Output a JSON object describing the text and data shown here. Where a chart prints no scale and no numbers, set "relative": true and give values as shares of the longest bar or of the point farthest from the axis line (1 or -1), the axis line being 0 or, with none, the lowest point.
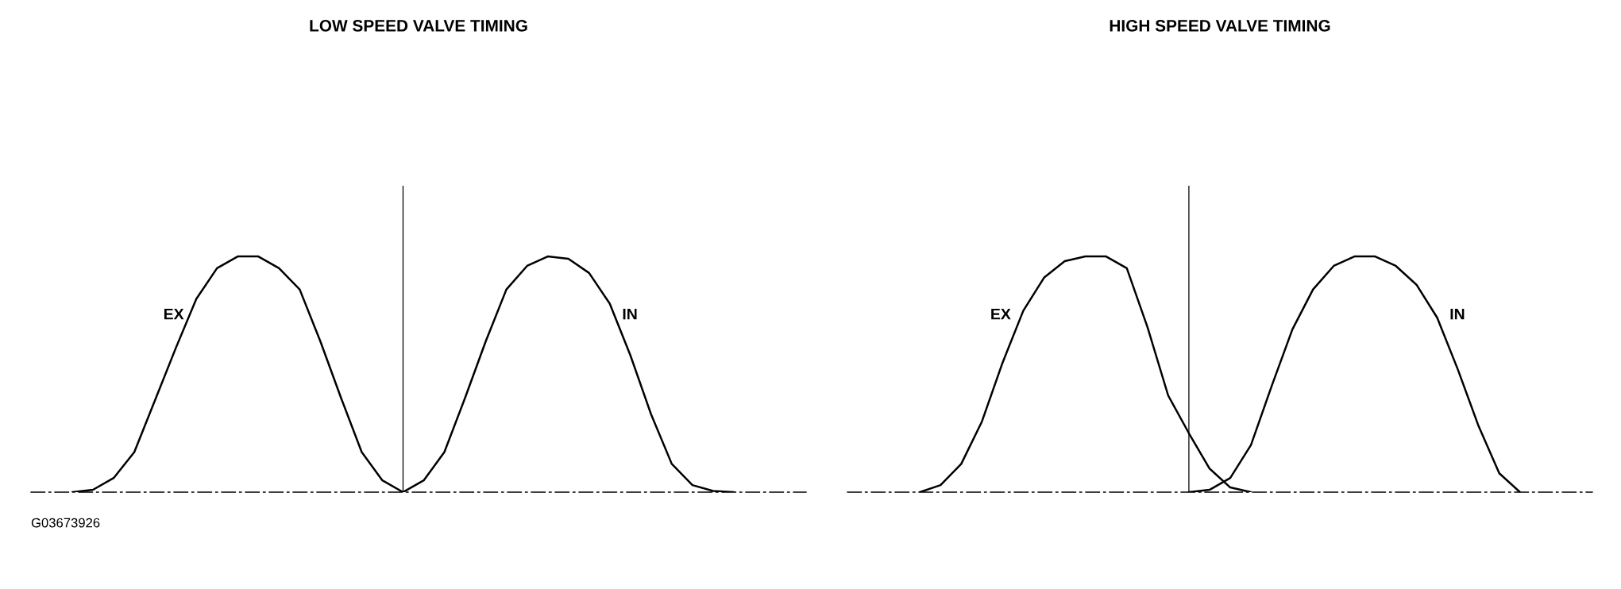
{
  "chart_data": [
    {
      "type": "line",
      "title": "LOW SPEED VALVE TIMING",
      "relative": true,
      "tick_labels": false,
      "legend": false,
      "categories": [
        null,
        null,
        null,
        null,
        null,
        null,
        null,
        null,
        null,
        null,
        null,
        null,
        null,
        null,
        null,
        null,
        null,
        null,
        null,
        null,
        null,
        null,
        null,
        null,
        null,
        null,
        null,
        null,
        null,
        null,
        null,
        null,
        null,
        null,
        null,
        null,
        null,
        null
      ],
      "series": [
        {
          "name": "EX",
          "color": "#000000",
          "values": [
            null,
            null,
            0,
            0.01,
            0.06,
            0.17,
            0.39,
            0.61,
            0.82,
            0.95,
            1.0,
            1.0,
            0.95,
            0.86,
            0.64,
            0.4,
            0.17,
            0.05,
            0,
            null,
            null,
            null,
            null,
            null,
            null,
            null,
            null,
            null,
            null,
            null,
            null,
            null,
            null,
            null,
            null,
            null,
            null,
            null
          ]
        },
        {
          "name": "IN",
          "color": "#000000",
          "values": [
            null,
            null,
            null,
            null,
            null,
            null,
            null,
            null,
            null,
            null,
            null,
            null,
            null,
            null,
            null,
            null,
            null,
            null,
            0,
            0.05,
            0.17,
            0.4,
            0.64,
            0.86,
            0.96,
            1.0,
            0.99,
            0.93,
            0.8,
            0.58,
            0.33,
            0.12,
            0.03,
            0.005,
            0,
            null,
            null,
            null
          ]
        }
      ],
      "annotations": [
        "G03673926"
      ]
    },
    {
      "type": "line",
      "title": "HIGH SPEED VALVE TIMING",
      "relative": true,
      "tick_labels": false,
      "legend": false,
      "categories": [
        null,
        null,
        null,
        null,
        null,
        null,
        null,
        null,
        null,
        null,
        null,
        null,
        null,
        null,
        null,
        null,
        null,
        null,
        null,
        null,
        null,
        null,
        null,
        null,
        null,
        null,
        null,
        null,
        null,
        null,
        null,
        null,
        null,
        null,
        null,
        null
      ],
      "series": [
        {
          "name": "EX",
          "color": "#000000",
          "values": [
            null,
            null,
            null,
            0,
            0.03,
            0.12,
            0.3,
            0.55,
            0.77,
            0.91,
            0.98,
            1.0,
            1.0,
            0.95,
            0.7,
            0.41,
            0.25,
            0.1,
            0.02,
            0,
            null,
            null,
            null,
            null,
            null,
            null,
            null,
            null,
            null,
            null,
            null,
            null,
            null,
            null,
            null,
            null
          ]
        },
        {
          "name": "IN",
          "color": "#000000",
          "values": [
            null,
            null,
            null,
            null,
            null,
            null,
            null,
            null,
            null,
            null,
            null,
            null,
            null,
            null,
            null,
            null,
            0,
            0.01,
            0.06,
            0.2,
            0.45,
            0.69,
            0.86,
            0.96,
            1.0,
            1.0,
            0.96,
            0.88,
            0.74,
            0.52,
            0.28,
            0.08,
            0,
            null,
            null,
            null
          ]
        }
      ]
    }
  ]
}
